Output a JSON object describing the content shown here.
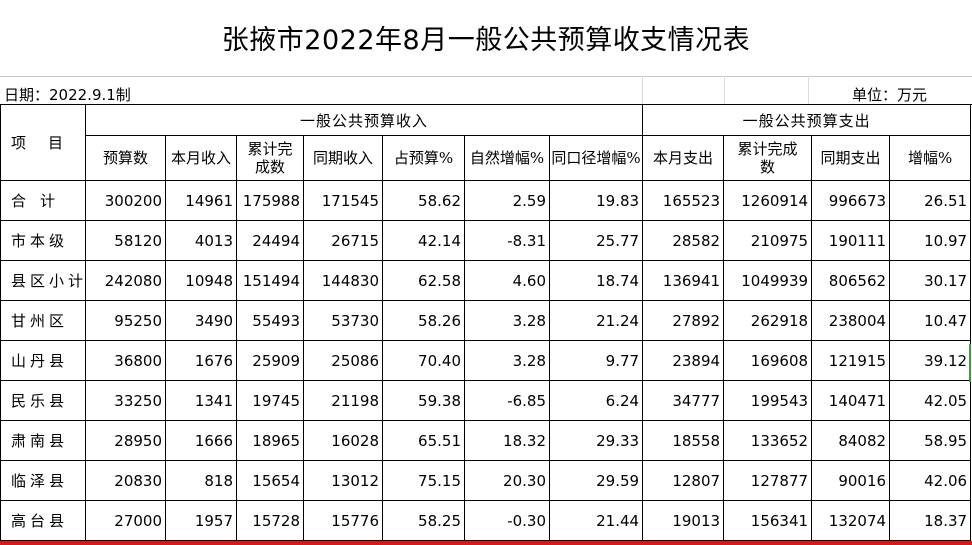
{
  "title": "张掖市2022年8月一般公共预算收支情况表",
  "date_label": "日期：2022.9.1制",
  "unit_label": "单位：万元",
  "header": {
    "item": "项目",
    "income_group": "一般公共预算收入",
    "expense_group": "一般公共预算支出",
    "columns": [
      "预算数",
      "本月收入",
      "累计完成数",
      "同期收入",
      "占预算%",
      "自然增幅%",
      "同口径增幅%",
      "本月支出",
      "累计完成数",
      "同期支出",
      "增幅%"
    ]
  },
  "rows": [
    {
      "name": "合计",
      "cells": [
        "300200",
        "14961",
        "175988",
        "171545",
        "58.62",
        "2.59",
        "19.83",
        "165523",
        "1260914",
        "996673",
        "26.51"
      ]
    },
    {
      "name": "市本级",
      "cells": [
        "58120",
        "4013",
        "24494",
        "26715",
        "42.14",
        "-8.31",
        "25.77",
        "28582",
        "210975",
        "190111",
        "10.97"
      ]
    },
    {
      "name": "县区小计",
      "cells": [
        "242080",
        "10948",
        "151494",
        "144830",
        "62.58",
        "4.60",
        "18.74",
        "136941",
        "1049939",
        "806562",
        "30.17"
      ]
    },
    {
      "name": "甘州区",
      "cells": [
        "95250",
        "3490",
        "55493",
        "53730",
        "58.26",
        "3.28",
        "21.24",
        "27892",
        "262918",
        "238004",
        "10.47"
      ]
    },
    {
      "name": "山丹县",
      "cells": [
        "36800",
        "1676",
        "25909",
        "25086",
        "70.40",
        "3.28",
        "9.77",
        "23894",
        "169608",
        "121915",
        "39.12"
      ]
    },
    {
      "name": "民乐县",
      "cells": [
        "33250",
        "1341",
        "19745",
        "21198",
        "59.38",
        "-6.85",
        "6.24",
        "34777",
        "199543",
        "140471",
        "42.05"
      ]
    },
    {
      "name": "肃南县",
      "cells": [
        "28950",
        "1666",
        "18965",
        "16028",
        "65.51",
        "18.32",
        "29.33",
        "18558",
        "133652",
        "84082",
        "58.95"
      ]
    },
    {
      "name": "临泽县",
      "cells": [
        "20830",
        "818",
        "15654",
        "13012",
        "75.15",
        "20.30",
        "29.59",
        "12807",
        "127877",
        "90016",
        "42.06"
      ]
    },
    {
      "name": "高台县",
      "cells": [
        "27000",
        "1957",
        "15728",
        "15776",
        "58.25",
        "-0.30",
        "21.44",
        "19013",
        "156341",
        "132074",
        "18.37"
      ]
    }
  ]
}
